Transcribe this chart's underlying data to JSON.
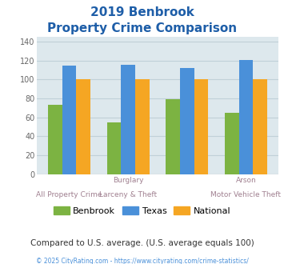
{
  "title_line1": "2019 Benbrook",
  "title_line2": "Property Crime Comparison",
  "title_color": "#1e5ea8",
  "benbrook": [
    73,
    55,
    79,
    65
  ],
  "texas": [
    115,
    116,
    112,
    121
  ],
  "national": [
    100,
    100,
    100,
    100
  ],
  "benbrook_color": "#7cb342",
  "texas_color": "#4a90d9",
  "national_color": "#f5a623",
  "ylim": [
    0,
    145
  ],
  "yticks": [
    0,
    20,
    40,
    60,
    80,
    100,
    120,
    140
  ],
  "grid_color": "#c0d0d8",
  "plot_area_color": "#dde8ed",
  "legend_labels": [
    "Benbrook",
    "Texas",
    "National"
  ],
  "top_labels": [
    "",
    "Burglary",
    "",
    "Arson"
  ],
  "bottom_labels": [
    "All Property Crime",
    "Larceny & Theft",
    "",
    "Motor Vehicle Theft"
  ],
  "label_color": "#a08090",
  "footer_text": "Compared to U.S. average. (U.S. average equals 100)",
  "footer_color": "#333333",
  "copyright_text": "© 2025 CityRating.com - https://www.cityrating.com/crime-statistics/",
  "copyright_color": "#4a90d9"
}
